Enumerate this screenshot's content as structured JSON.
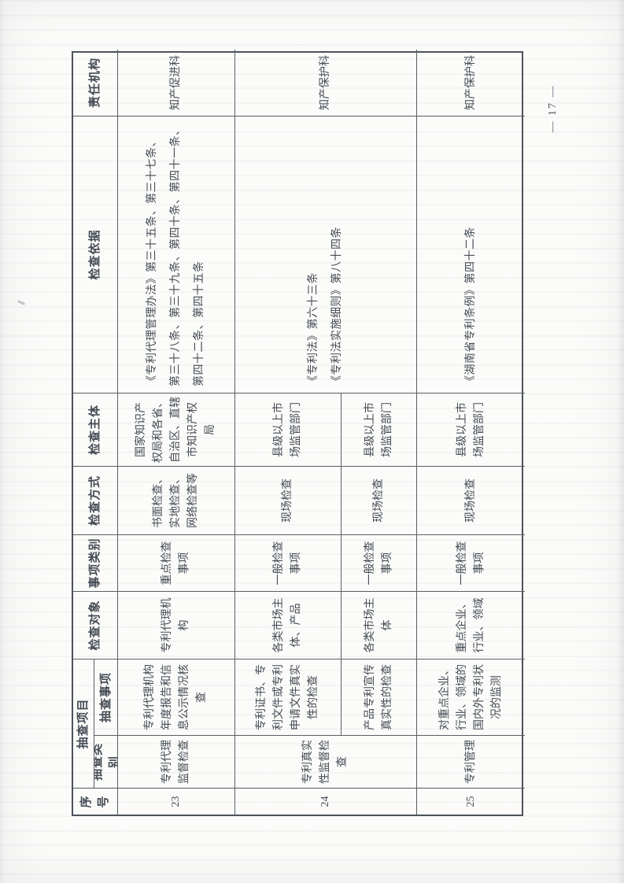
{
  "page": {
    "number_label": "— 17 —"
  },
  "table": {
    "headers": {
      "serial": "序号",
      "project": "抽查项目",
      "category": "抽查类别",
      "item": "抽查事项",
      "target": "检查对象",
      "item_type": "事项类别",
      "method": "检查方式",
      "subject": "检查主体",
      "basis": "检查依据",
      "responsible": "责任机构"
    },
    "rows": [
      {
        "serial": "23",
        "category": "专利代理\n监督检查",
        "item": "专利代理机构\n年度报告和信\n息公示情况核\n查",
        "target": "专利代理机\n构",
        "item_type": "重点检查\n事项",
        "method": "书面检查、\n实地检查、\n网络检查等",
        "subject": "国家知识产\n权局和各省、\n自治区、直辖\n市知识产权\n局",
        "basis": "《专利代理管理办法》第三十五条、第三十七条、\n第三十八条、第三十九条、第四十条、第四十一条、\n第四十二条、第四十五条",
        "responsible": "知产促进科"
      },
      {
        "serial": "24",
        "category": "专利真实\n性监督检\n查",
        "basis": "《专利法》第六十三条\n《专利法实施细则》第八十四条",
        "responsible": "知产保护科",
        "sub_rows": [
          {
            "item": "专利证书、专\n利文件或专利\n申请文件真实\n性的检查",
            "target": "各类市场主\n体、产品",
            "item_type": "一般检查\n事项",
            "method": "现场检查",
            "subject": "县级以上市\n场监管部门"
          },
          {
            "item": "产品专利宣传\n真实性的检查",
            "target": "各类市场主\n体",
            "item_type": "一般检查\n事项",
            "method": "现场检查",
            "subject": "县级以上市\n场监管部门"
          }
        ]
      },
      {
        "serial": "25",
        "category": "专利管理",
        "item": "对重点企业、\n行业、领域的\n国内外专利状\n况的监测",
        "target": "重点企业、\n行业、领域",
        "item_type": "一般检查\n事项",
        "method": "现场检查",
        "subject": "县级以上市\n场监管部门",
        "basis": "《湖南省专利条例》第四十二条",
        "responsible": "知产保护科"
      }
    ]
  }
}
